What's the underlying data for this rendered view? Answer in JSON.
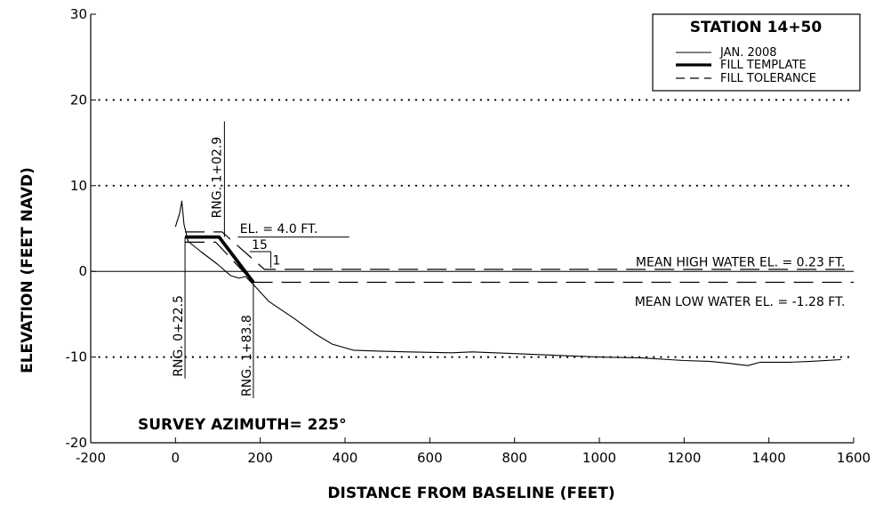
{
  "chart_data": {
    "type": "line",
    "xlabel": "DISTANCE FROM BASELINE (FEET)",
    "ylabel": "ELEVATION (FEET NAVD)",
    "xlim": [
      -200,
      1600
    ],
    "ylim": [
      -20,
      30
    ],
    "x_ticks": [
      "-200",
      "0",
      "200",
      "400",
      "600",
      "800",
      "1000",
      "1200",
      "1400",
      "1600"
    ],
    "y_ticks": [
      "30",
      "20",
      "10",
      "0",
      "-10",
      "-20"
    ],
    "grid": "dotted horizontal lines at 20, 10, -10",
    "legend": {
      "title": "STATION 14+50",
      "placement": "top-right",
      "entries": [
        "JAN. 2008",
        "FILL TEMPLATE",
        "FILL TOLERANCE"
      ]
    },
    "series": [
      {
        "name": "JAN. 2008",
        "style": "thin-solid",
        "points": [
          [
            0,
            5.2
          ],
          [
            10,
            6.8
          ],
          [
            15,
            8.2
          ],
          [
            20,
            5.5
          ],
          [
            30,
            3.5
          ],
          [
            60,
            2.3
          ],
          [
            100,
            0.8
          ],
          [
            130,
            -0.5
          ],
          [
            150,
            -0.8
          ],
          [
            165,
            -0.6
          ],
          [
            185,
            -1.6
          ],
          [
            220,
            -3.5
          ],
          [
            280,
            -5.5
          ],
          [
            330,
            -7.3
          ],
          [
            370,
            -8.5
          ],
          [
            420,
            -9.2
          ],
          [
            480,
            -9.3
          ],
          [
            550,
            -9.4
          ],
          [
            650,
            -9.5
          ],
          [
            700,
            -9.4
          ],
          [
            800,
            -9.6
          ],
          [
            900,
            -9.8
          ],
          [
            1000,
            -10.0
          ],
          [
            1100,
            -10.1
          ],
          [
            1200,
            -10.4
          ],
          [
            1260,
            -10.5
          ],
          [
            1300,
            -10.7
          ],
          [
            1350,
            -11.0
          ],
          [
            1380,
            -10.6
          ],
          [
            1450,
            -10.6
          ],
          [
            1500,
            -10.5
          ],
          [
            1570,
            -10.3
          ]
        ]
      },
      {
        "name": "FILL TEMPLATE",
        "style": "thick-solid",
        "points": [
          [
            22.5,
            4.0
          ],
          [
            102.9,
            4.0
          ],
          [
            183.8,
            -1.28
          ]
        ]
      },
      {
        "name": "FILL TOLERANCE",
        "style": "dashed",
        "points": [
          [
            22.5,
            4.6
          ],
          [
            110,
            4.6
          ],
          [
            210,
            0.23
          ],
          [
            1600,
            0.23
          ]
        ],
        "points_lower": [
          [
            22.5,
            3.4
          ],
          [
            95,
            3.4
          ],
          [
            183.8,
            -1.28
          ],
          [
            1600,
            -1.28
          ]
        ]
      }
    ],
    "annotations": {
      "elevation": "EL. = 4.0 FT.",
      "slope_run": "15",
      "slope_rise": "1",
      "mhw": "MEAN HIGH WATER EL. = 0.23 FT.",
      "mlw": "MEAN LOW WATER EL. = -1.28 FT.",
      "rng_a": "RNG. 0+22.5",
      "rng_b": "RNG. 1+02.9",
      "rng_c": "RNG. 1+83.8",
      "azimuth": "SURVEY AZIMUTH= 225°",
      "rng_a_x": 22.5,
      "rng_b_x": 102.9,
      "rng_c_x": 183.8
    }
  }
}
